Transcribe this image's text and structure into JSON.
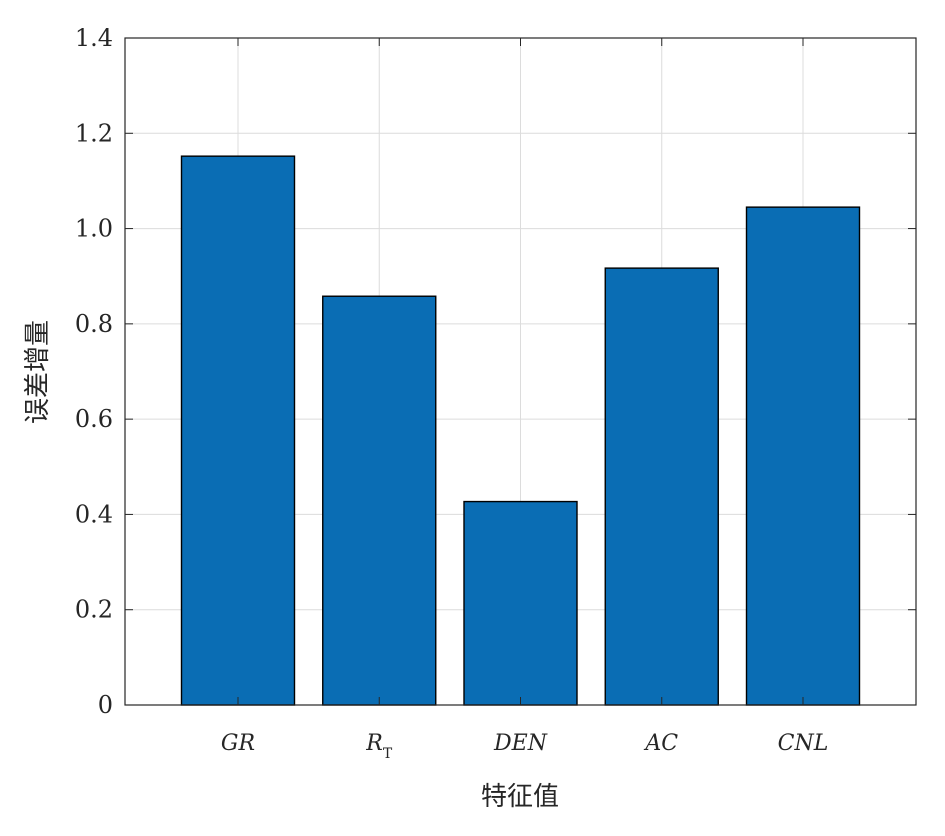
{
  "chart_data": {
    "type": "bar",
    "title": "",
    "xlabel": "特征值",
    "ylabel": "误差增量",
    "categories": [
      "GR",
      "R",
      "DEN",
      "AC",
      "CNL"
    ],
    "category_subscripts": [
      "",
      "T",
      "",
      "",
      ""
    ],
    "values": [
      1.152,
      0.858,
      0.427,
      0.917,
      1.045
    ],
    "ylim": [
      0,
      1.4
    ],
    "yticks": [
      "0",
      "0.2",
      "0.4",
      "0.6",
      "0.8",
      "1.0",
      "1.2",
      "1.4"
    ],
    "x_positions": [
      1,
      2,
      3,
      4,
      5
    ],
    "xlim": [
      0.2,
      5.8
    ],
    "grid": true,
    "colors": {
      "bar": "#0a6db4",
      "bar_edge": "#000000",
      "grid": "#dcdcdc",
      "axis": "#262626"
    }
  }
}
